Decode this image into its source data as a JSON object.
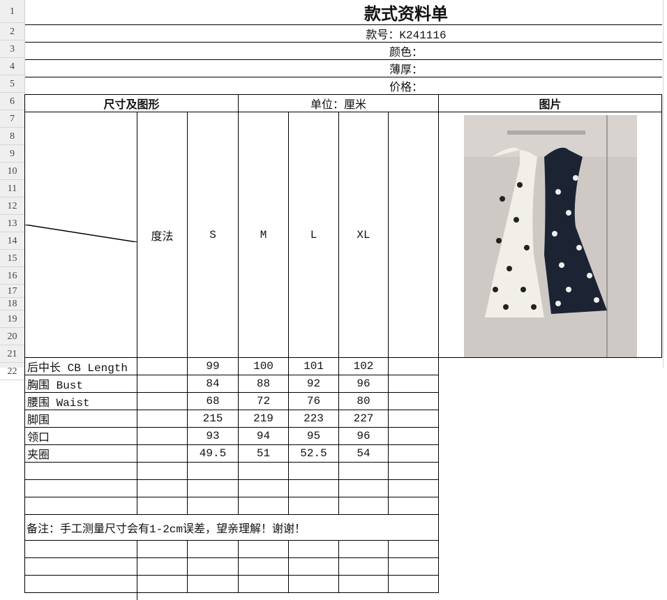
{
  "row_numbers": [
    "1",
    "2",
    "3",
    "4",
    "5",
    "6",
    "7",
    "8",
    "9",
    "10",
    "11",
    "12",
    "13",
    "14",
    "15",
    "16",
    "17",
    "18",
    "19",
    "20",
    "21",
    "22"
  ],
  "title": "款式资料单",
  "style_no": "款号：K241116",
  "color": "颜色：",
  "thickness": "薄厚：",
  "price": "价格：",
  "size_header": "尺寸及图形",
  "unit": "单位：厘米",
  "picture_header": "图片",
  "method": "度法",
  "sizes": [
    "S",
    "M",
    "L",
    "XL"
  ],
  "size_color": "#ee0000",
  "measurements": [
    {
      "name": "后中长 CB Length",
      "values": [
        "99",
        "100",
        "101",
        "102"
      ]
    },
    {
      "name": "胸围 Bust",
      "values": [
        "84",
        "88",
        "92",
        "96"
      ]
    },
    {
      "name": "腰围 Waist",
      "values": [
        "68",
        "72",
        "76",
        "80"
      ]
    },
    {
      "name": "脚围",
      "values": [
        "215",
        "219",
        "223",
        "227"
      ]
    },
    {
      "name": "领口",
      "values": [
        "93",
        "94",
        "95",
        "96"
      ]
    },
    {
      "name": "夹圈",
      "values": [
        "49.5",
        "51",
        "52.5",
        "54"
      ]
    }
  ],
  "note": "备注：手工测量尺寸会有1-2cm误差，望亲理解！谢谢！"
}
